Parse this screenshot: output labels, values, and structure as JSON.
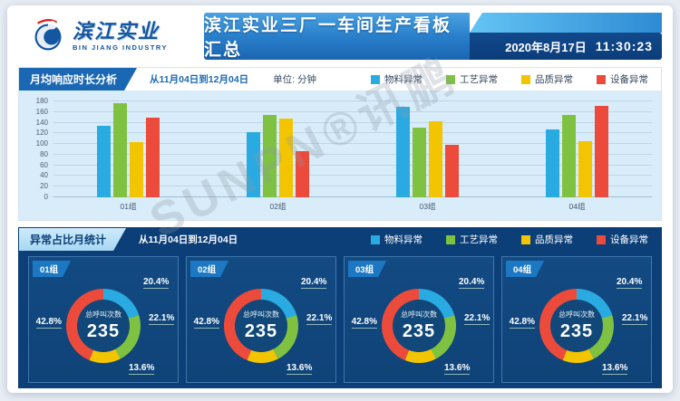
{
  "header": {
    "logo_title": "滨江实业",
    "logo_subtitle": "BIN JIANG INDUSTRY",
    "title": "滨江实业三厂一车间生产看板汇总",
    "date": "2020年8月17日",
    "time": "11:30:23"
  },
  "colors": {
    "material": "#29abe2",
    "process": "#7fc241",
    "quality": "#f2c500",
    "equipment": "#ec4b3b",
    "panel2_bg": "#0c3f78",
    "tab_blue": "#1a68b4"
  },
  "legend": [
    {
      "label": "物料异常",
      "color": "#29abe2"
    },
    {
      "label": "工艺异常",
      "color": "#7fc241"
    },
    {
      "label": "品质异常",
      "color": "#f2c500"
    },
    {
      "label": "设备异常",
      "color": "#ec4b3b"
    }
  ],
  "panel1": {
    "title": "月均响应时长分析",
    "date_range": "从11月04日到12月04日",
    "unit": "单位: 分钟"
  },
  "panel2": {
    "title": "异常占比月统计",
    "date_range": "从11月04日到12月04日"
  },
  "watermark": "SUNPN®讯鹏",
  "chart_data": [
    {
      "type": "bar",
      "title": "月均响应时长分析",
      "xlabel": "",
      "ylabel": "分钟",
      "ylim": [
        0,
        180
      ],
      "ytick_step": 20,
      "grid": true,
      "legend_position": "top-right",
      "categories": [
        "01组",
        "02组",
        "03组",
        "04组"
      ],
      "series": [
        {
          "name": "物料异常",
          "color": "#29abe2",
          "values": [
            135,
            123,
            170,
            128
          ]
        },
        {
          "name": "工艺异常",
          "color": "#7fc241",
          "values": [
            176,
            155,
            130,
            155
          ]
        },
        {
          "name": "品质异常",
          "color": "#f2c500",
          "values": [
            103,
            148,
            143,
            105
          ]
        },
        {
          "name": "设备异常",
          "color": "#ec4b3b",
          "values": [
            149,
            87,
            99,
            172
          ]
        }
      ]
    },
    {
      "type": "pie",
      "title": "异常占比月统计",
      "donuts": [
        {
          "group": "01组",
          "center_label": "总呼叫次数",
          "total": "235",
          "slices": [
            {
              "name": "物料异常",
              "pct": 20.4,
              "label": "20.4%"
            },
            {
              "name": "工艺异常",
              "pct": 22.1,
              "label": "22.1%"
            },
            {
              "name": "品质异常",
              "pct": 13.6,
              "label": "13.6%"
            },
            {
              "name": "设备异常",
              "pct": 42.8,
              "label": "42.8%"
            }
          ]
        },
        {
          "group": "02组",
          "center_label": "总呼叫次数",
          "total": "235",
          "slices": [
            {
              "name": "物料异常",
              "pct": 20.4,
              "label": "20.4%"
            },
            {
              "name": "工艺异常",
              "pct": 22.1,
              "label": "22.1%"
            },
            {
              "name": "品质异常",
              "pct": 13.6,
              "label": "13.6%"
            },
            {
              "name": "设备异常",
              "pct": 42.8,
              "label": "42.8%"
            }
          ]
        },
        {
          "group": "03组",
          "center_label": "总呼叫次数",
          "total": "235",
          "slices": [
            {
              "name": "物料异常",
              "pct": 20.4,
              "label": "20.4%"
            },
            {
              "name": "工艺异常",
              "pct": 22.1,
              "label": "22.1%"
            },
            {
              "name": "品质异常",
              "pct": 13.6,
              "label": "13.6%"
            },
            {
              "name": "设备异常",
              "pct": 42.8,
              "label": "42.8%"
            }
          ]
        },
        {
          "group": "04组",
          "center_label": "总呼叫次数",
          "total": "235",
          "slices": [
            {
              "name": "物料异常",
              "pct": 20.4,
              "label": "20.4%"
            },
            {
              "name": "工艺异常",
              "pct": 22.1,
              "label": "22.1%"
            },
            {
              "name": "品质异常",
              "pct": 13.6,
              "label": "13.6%"
            },
            {
              "name": "设备异常",
              "pct": 42.8,
              "label": "42.8%"
            }
          ]
        }
      ]
    }
  ]
}
